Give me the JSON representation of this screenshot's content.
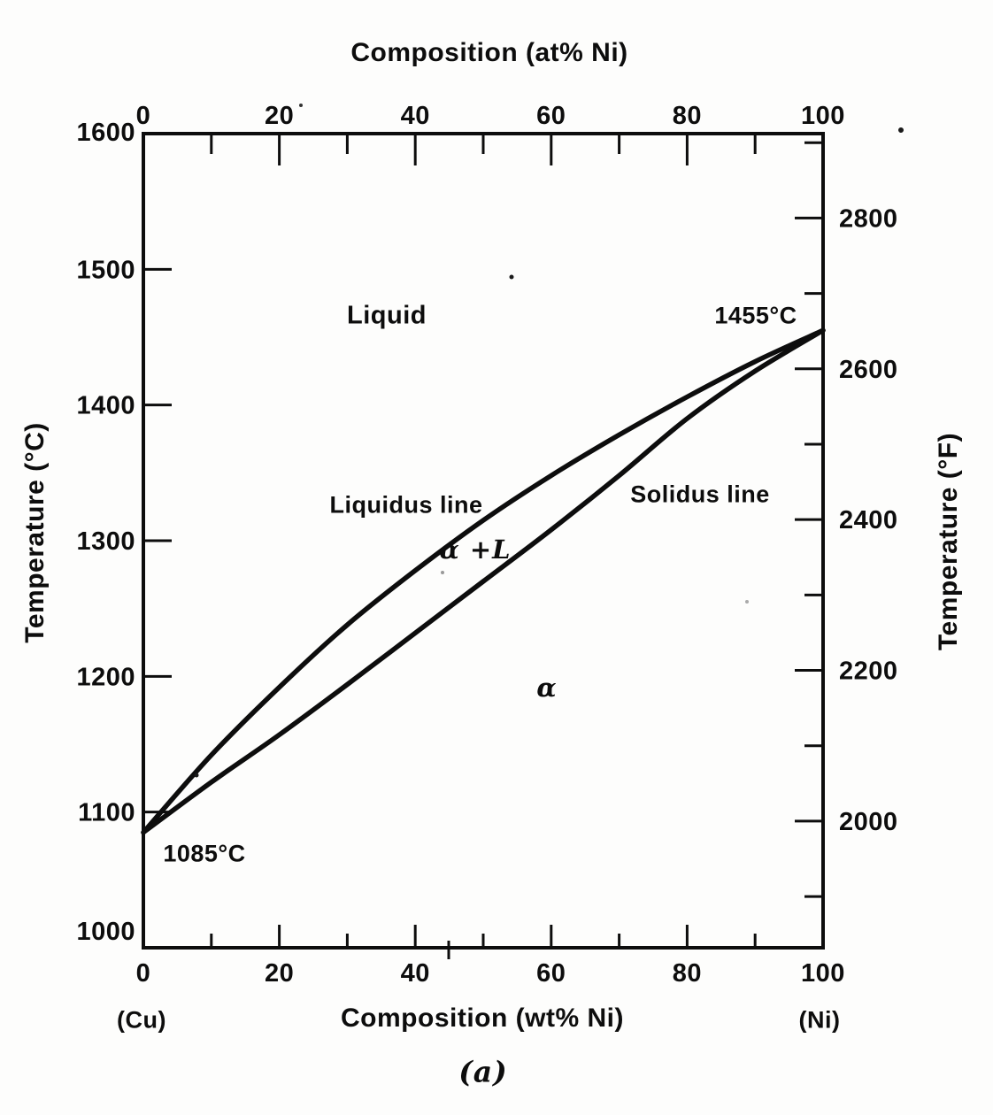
{
  "figure": {
    "ink_color": "#0d0d0d",
    "background_color": "#fdfdfc",
    "top_axis": {
      "title": "Composition (at% Ni)",
      "major_ticks": [
        0,
        20,
        40,
        60,
        80,
        100
      ],
      "minor_ticks": [
        10,
        30,
        50,
        70,
        90
      ]
    },
    "bottom_axis": {
      "title": "Composition (wt% Ni)",
      "major_ticks": [
        0,
        20,
        40,
        60,
        80,
        100
      ],
      "minor_ticks": [
        10,
        30,
        50,
        70,
        90
      ],
      "left_end_label": "(Cu)",
      "right_end_label": "(Ni)"
    },
    "left_axis": {
      "title": "Temperature (°C)",
      "tick_labels": [
        1600,
        1500,
        1400,
        1300,
        1200,
        1100,
        1000
      ],
      "ticked_values": [
        1500,
        1400,
        1300,
        1200,
        1100
      ]
    },
    "right_axis": {
      "title": "Temperature (°F)",
      "major_ticks": [
        2800,
        2600,
        2400,
        2200,
        2000
      ],
      "minor_ticks": [
        2900,
        2700,
        2500,
        2300,
        2100,
        1900
      ]
    },
    "annotations": {
      "liquid_region": "Liquid",
      "ni_melting_point": "1455°C",
      "liquidus_line": "Liquidus line",
      "solidus_line": "Solidus line",
      "alpha_plus_liquid_region": "α +L",
      "alpha_region": "α",
      "cu_melting_point": "1085°C"
    },
    "caption": "(a)"
  },
  "chart_data": {
    "type": "line",
    "title": "",
    "xlabel": "Composition (wt% Ni)",
    "x2label": "Composition (at% Ni)",
    "ylabel": "Temperature (°C)",
    "y2label": "Temperature (°F)",
    "xlim": [
      0,
      100
    ],
    "ylim": [
      1000,
      1600
    ],
    "grid": false,
    "legend": "none",
    "x": [
      0,
      10,
      20,
      30,
      40,
      50,
      60,
      70,
      80,
      90,
      100
    ],
    "series": [
      {
        "name": "Liquidus",
        "values": [
          1085,
          1142,
          1192,
          1238,
          1278,
          1315,
          1348,
          1378,
          1406,
          1432,
          1455
        ]
      },
      {
        "name": "Solidus",
        "values": [
          1085,
          1122,
          1157,
          1194,
          1232,
          1270,
          1308,
          1348,
          1390,
          1425,
          1455
        ]
      }
    ],
    "point_annotations": [
      {
        "text": "1085°C",
        "x": 0,
        "y": 1085,
        "meaning": "melting point of Cu"
      },
      {
        "text": "1455°C",
        "x": 100,
        "y": 1455,
        "meaning": "melting point of Ni"
      }
    ]
  }
}
